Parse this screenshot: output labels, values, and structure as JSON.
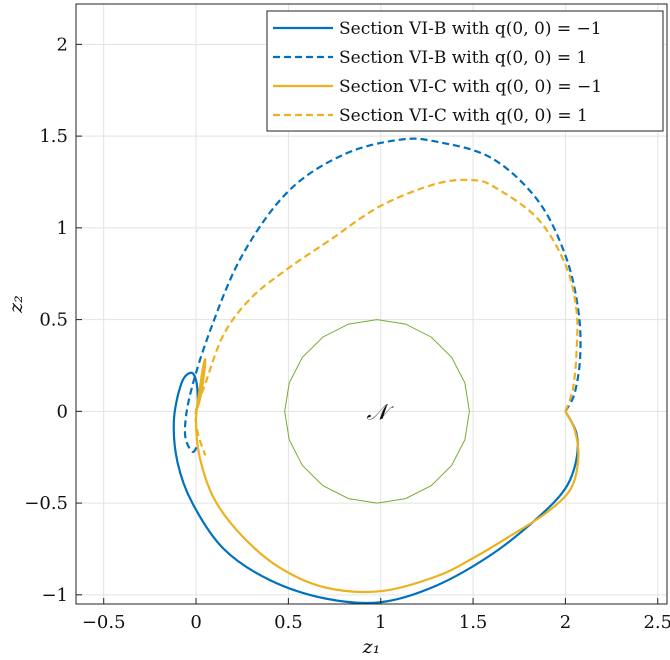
{
  "chart_data": {
    "type": "line",
    "title": "",
    "xlabel": "z₁",
    "ylabel": "z₂",
    "xlim": [
      -0.65,
      2.55
    ],
    "ylim": [
      -1.05,
      2.22
    ],
    "xticks": [
      -0.5,
      0,
      0.5,
      1,
      1.5,
      2,
      2.5
    ],
    "xtick_labels": [
      "−0.5",
      "0",
      "0.5",
      "1",
      "1.5",
      "2",
      "2.5"
    ],
    "yticks": [
      -1,
      -0.5,
      0,
      0.5,
      1,
      1.5,
      2
    ],
    "ytick_labels": [
      "−1",
      "−0.5",
      "0",
      "0.5",
      "1",
      "1.5",
      "2"
    ],
    "grid": true,
    "legend_position": "top-right",
    "annotation": {
      "text": "𝒩",
      "x": 0.98,
      "y": 0.0
    },
    "series": [
      {
        "name": "Section VI-B with q(0,0) = −1",
        "color": "#0072BD",
        "dash": "solid",
        "points": [
          [
            2.0,
            0.0
          ],
          [
            2.06,
            -0.12
          ],
          [
            2.06,
            -0.26
          ],
          [
            2.0,
            -0.42
          ],
          [
            1.85,
            -0.58
          ],
          [
            1.6,
            -0.78
          ],
          [
            1.3,
            -0.95
          ],
          [
            1.0,
            -1.04
          ],
          [
            0.7,
            -1.02
          ],
          [
            0.4,
            -0.92
          ],
          [
            0.15,
            -0.75
          ],
          [
            -0.02,
            -0.5
          ],
          [
            -0.1,
            -0.28
          ],
          [
            -0.12,
            -0.05
          ],
          [
            -0.08,
            0.15
          ],
          [
            -0.03,
            0.21
          ],
          [
            0.0,
            0.17
          ],
          [
            0.01,
            0.06
          ],
          [
            0.0,
            0.0
          ]
        ]
      },
      {
        "name": "Section VI-B with q(0,0) = 1",
        "color": "#0072BD",
        "dash": "dashed",
        "points": [
          [
            2.0,
            0.0
          ],
          [
            2.05,
            0.1
          ],
          [
            2.08,
            0.3
          ],
          [
            2.07,
            0.55
          ],
          [
            2.0,
            0.85
          ],
          [
            1.85,
            1.15
          ],
          [
            1.6,
            1.38
          ],
          [
            1.3,
            1.47
          ],
          [
            1.1,
            1.48
          ],
          [
            0.8,
            1.4
          ],
          [
            0.5,
            1.2
          ],
          [
            0.25,
            0.85
          ],
          [
            0.08,
            0.45
          ],
          [
            -0.03,
            0.1
          ],
          [
            -0.06,
            -0.12
          ],
          [
            -0.02,
            -0.22
          ],
          [
            0.01,
            -0.18
          ]
        ]
      },
      {
        "name": "Section VI-C with q(0,0) = −1",
        "color": "#EDB120",
        "dash": "solid",
        "points": [
          [
            2.0,
            0.0
          ],
          [
            2.05,
            -0.1
          ],
          [
            2.07,
            -0.25
          ],
          [
            2.03,
            -0.42
          ],
          [
            1.9,
            -0.55
          ],
          [
            1.7,
            -0.68
          ],
          [
            1.5,
            -0.8
          ],
          [
            1.3,
            -0.9
          ],
          [
            1.0,
            -0.98
          ],
          [
            0.7,
            -0.96
          ],
          [
            0.45,
            -0.85
          ],
          [
            0.25,
            -0.68
          ],
          [
            0.1,
            -0.48
          ],
          [
            0.02,
            -0.25
          ],
          [
            0.0,
            -0.05
          ],
          [
            0.02,
            0.12
          ],
          [
            0.04,
            0.25
          ],
          [
            0.05,
            0.28
          ],
          [
            0.04,
            0.18
          ],
          [
            0.02,
            0.06
          ],
          [
            0.0,
            0.0
          ]
        ]
      },
      {
        "name": "Section VI-C with q(0,0) = 1",
        "color": "#EDB120",
        "dash": "dashed",
        "points": [
          [
            2.0,
            0.0
          ],
          [
            2.04,
            0.12
          ],
          [
            2.06,
            0.32
          ],
          [
            2.06,
            0.55
          ],
          [
            2.0,
            0.8
          ],
          [
            1.85,
            1.05
          ],
          [
            1.62,
            1.22
          ],
          [
            1.5,
            1.26
          ],
          [
            1.3,
            1.24
          ],
          [
            1.0,
            1.12
          ],
          [
            0.72,
            0.93
          ],
          [
            0.5,
            0.78
          ],
          [
            0.3,
            0.62
          ],
          [
            0.15,
            0.42
          ],
          [
            0.05,
            0.15
          ],
          [
            0.0,
            0.0
          ],
          [
            0.01,
            -0.12
          ],
          [
            0.05,
            -0.24
          ]
        ]
      },
      {
        "name": "",
        "color": "#77AC30",
        "dash": "solid",
        "circle": {
          "cx": 0.98,
          "cy": 0.0,
          "r": 0.5
        }
      }
    ],
    "legend": [
      {
        "text": "Section VI-B with q(0, 0) = −1",
        "color": "#0072BD",
        "dash": "solid"
      },
      {
        "text": "Section VI-B with q(0, 0) = 1",
        "color": "#0072BD",
        "dash": "dashed"
      },
      {
        "text": "Section VI-C with q(0, 0) = −1",
        "color": "#EDB120",
        "dash": "solid"
      },
      {
        "text": "Section VI-C with q(0, 0) = 1",
        "color": "#EDB120",
        "dash": "dashed"
      }
    ]
  }
}
